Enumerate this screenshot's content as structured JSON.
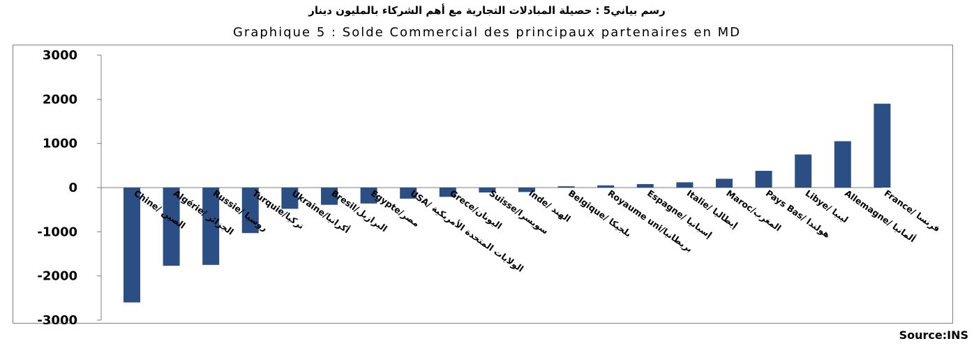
{
  "title_ar": "رسم بياني5 : حصيلة المبادلات التجارية مع أهم الشركاء بالمليون دينار",
  "title_fr": "Graphique 5 : Solde Commercial des principaux partenaires en MD",
  "source": "Source:INS",
  "colors": {
    "bar": "#2b4e84",
    "axis": "#7f7f7f"
  },
  "chart_data": {
    "type": "bar",
    "categories": [
      "Chine/ الصين",
      "Algérie/ الجزائر",
      "Russie/ روسيا",
      "Turquie/تركيا",
      "Ukraine/أكرانيا",
      "Bresil/البرازيل",
      "Egypte/مصر",
      "USA/ الولايات المتحدة الأمريكية",
      "Grece/اليونان",
      "Suisse/سويسرا",
      "Inde/ الهند",
      "Belgique/ بلجيكا",
      "Royaume uni/بريطانيا",
      "Espagne/ إسبانيا",
      "Italie/ إيطاليا",
      "Maroc/المغرب",
      "Pays Bas/ هولندا",
      "Libye/ ليبيا",
      "Allemagne/ ألمانيا",
      "France/ فرنسا"
    ],
    "values": [
      -2600,
      -1770,
      -1750,
      -1030,
      -480,
      -390,
      -360,
      -250,
      -210,
      -110,
      -100,
      30,
      50,
      80,
      120,
      200,
      380,
      750,
      1050,
      1900
    ],
    "yticks": [
      "3000",
      "2000",
      "1000",
      "0",
      "-1000",
      "-2000",
      "-3000"
    ],
    "ylim": [
      -3000,
      3000
    ],
    "grid": false,
    "legend": "none"
  }
}
